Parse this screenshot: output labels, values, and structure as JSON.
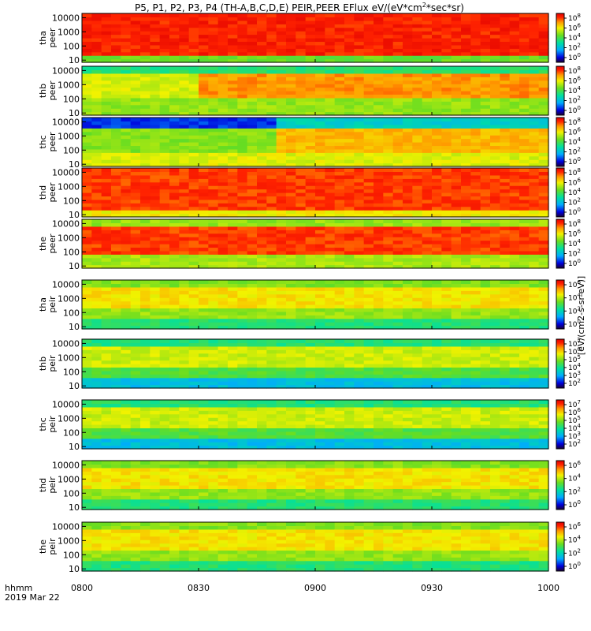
{
  "chart_data": {
    "type": "heatmap",
    "title": "P5, P1, P2, P3, P4 (TH-A,B,C,D,E) PEIR,PEER EFlux eV/(eV*cm2*sec*sr)",
    "title_parts": [
      "P5, P1, P2, P3, P4 (TH-A,B,C,D,E) PEIR,PEER EFlux eV/(eV*cm",
      "2",
      "*sec*sr)"
    ],
    "x_ticks": [
      "0800",
      "0830",
      "0900",
      "0930",
      "1000"
    ],
    "x_range": [
      "08:00",
      "10:00"
    ],
    "footer": {
      "line1": "hhmm",
      "line2": "2019 Mar 22"
    },
    "y_scale": "log",
    "y_range": [
      7,
      20000
    ],
    "y_ticks": [
      "10000",
      "1000",
      "100",
      "10"
    ],
    "colorbar_label": "[eV/(cm2-s-sr-eV)]",
    "panels": [
      {
        "ylabel": [
          "tha",
          "peer"
        ],
        "cbar": [
          "10^8",
          "10^6",
          "10^4",
          "10^2",
          "10^0"
        ],
        "species": "e",
        "sat": "a"
      },
      {
        "ylabel": [
          "thb",
          "peer"
        ],
        "cbar": [
          "10^8",
          "10^6",
          "10^4",
          "10^2",
          "10^0"
        ],
        "species": "e",
        "sat": "b"
      },
      {
        "ylabel": [
          "thc",
          "peer"
        ],
        "cbar": [
          "10^8",
          "10^6",
          "10^4",
          "10^2",
          "10^0"
        ],
        "species": "e",
        "sat": "c"
      },
      {
        "ylabel": [
          "thd",
          "peer"
        ],
        "cbar": [
          "10^8",
          "10^6",
          "10^4",
          "10^2",
          "10^0"
        ],
        "species": "e",
        "sat": "d"
      },
      {
        "ylabel": [
          "the",
          "peer"
        ],
        "cbar": [
          "10^8",
          "10^6",
          "10^4",
          "10^2",
          "10^0"
        ],
        "species": "e",
        "sat": "e"
      },
      {
        "ylabel": [
          "tha",
          "peir"
        ],
        "cbar": [
          "10^6",
          "10^4",
          "10^2",
          "10^0"
        ],
        "species": "i",
        "sat": "a"
      },
      {
        "ylabel": [
          "thb",
          "peir"
        ],
        "cbar": [
          "10^7",
          "10^6",
          "10^5",
          "10^4",
          "10^3",
          "10^2"
        ],
        "species": "i",
        "sat": "b"
      },
      {
        "ylabel": [
          "thc",
          "peir"
        ],
        "cbar": [
          "10^7",
          "10^6",
          "10^5",
          "10^4",
          "10^3",
          "10^2"
        ],
        "species": "i",
        "sat": "c"
      },
      {
        "ylabel": [
          "thd",
          "peir"
        ],
        "cbar": [
          "10^6",
          "10^4",
          "10^2",
          "10^0"
        ],
        "species": "i",
        "sat": "d"
      },
      {
        "ylabel": [
          "the",
          "peir"
        ],
        "cbar": [
          "10^6",
          "10^4",
          "10^2",
          "10^0"
        ],
        "species": "i",
        "sat": "e"
      }
    ],
    "grid": false
  }
}
